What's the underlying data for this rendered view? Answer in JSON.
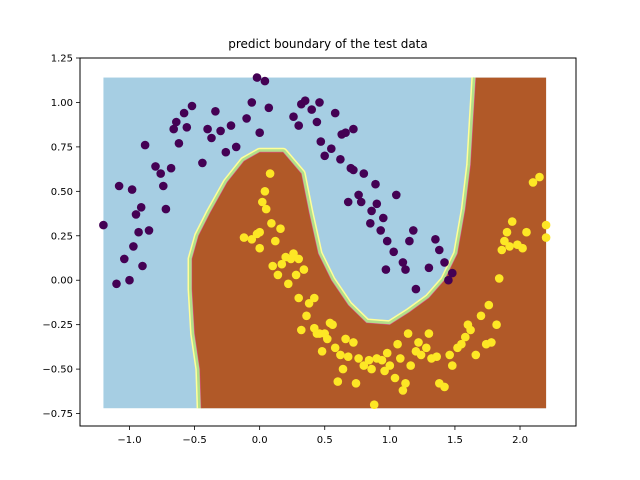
{
  "chart_data": {
    "type": "scatter",
    "title": "predict boundary of the test data",
    "xlabel": "",
    "ylabel": "",
    "xlim": [
      -1.38,
      2.43
    ],
    "ylim": [
      -0.82,
      1.25
    ],
    "xticks": [
      -1.0,
      -0.5,
      0.0,
      0.5,
      1.0,
      1.5,
      2.0
    ],
    "xtick_labels": [
      "−1.0",
      "−0.5",
      "0.0",
      "0.5",
      "1.0",
      "1.5",
      "2.0"
    ],
    "yticks": [
      -0.75,
      -0.5,
      -0.25,
      0.0,
      0.25,
      0.5,
      0.75,
      1.0,
      1.25
    ],
    "ytick_labels": [
      "−0.75",
      "−0.50",
      "−0.25",
      "0.00",
      "0.25",
      "0.50",
      "0.75",
      "1.00",
      "1.25"
    ],
    "grid": false,
    "legend": "none",
    "colors": {
      "region_class0": "#a6cee3",
      "region_class1": "#b15928",
      "boundary_inner": "#b2df8a",
      "boundary_outer": "#ffff99",
      "point_class0": "#440154",
      "point_class1": "#fde725"
    },
    "decision_region": {
      "x_range": [
        -1.2,
        2.2
      ],
      "y_range": [
        -0.72,
        1.14
      ],
      "boundary": [
        [
          -0.45,
          -0.72
        ],
        [
          -0.46,
          -0.5
        ],
        [
          -0.5,
          -0.3
        ],
        [
          -0.52,
          -0.05
        ],
        [
          -0.52,
          0.12
        ],
        [
          -0.47,
          0.25
        ],
        [
          -0.38,
          0.38
        ],
        [
          -0.25,
          0.55
        ],
        [
          -0.12,
          0.67
        ],
        [
          0.0,
          0.72
        ],
        [
          0.18,
          0.72
        ],
        [
          0.32,
          0.6
        ],
        [
          0.38,
          0.38
        ],
        [
          0.45,
          0.15
        ],
        [
          0.55,
          0.0
        ],
        [
          0.68,
          -0.14
        ],
        [
          0.82,
          -0.24
        ],
        [
          1.0,
          -0.25
        ],
        [
          1.15,
          -0.18
        ],
        [
          1.3,
          -0.1
        ],
        [
          1.42,
          0.0
        ],
        [
          1.52,
          0.15
        ],
        [
          1.58,
          0.4
        ],
        [
          1.62,
          0.65
        ],
        [
          1.64,
          0.9
        ],
        [
          1.66,
          1.14
        ]
      ]
    },
    "series": [
      {
        "class": 0,
        "points": [
          [
            -1.2,
            0.31
          ],
          [
            -1.1,
            -0.02
          ],
          [
            -1.08,
            0.53
          ],
          [
            -1.04,
            0.12
          ],
          [
            -1.0,
            -0.0
          ],
          [
            -0.98,
            0.51
          ],
          [
            -0.97,
            0.19
          ],
          [
            -0.95,
            0.37
          ],
          [
            -0.93,
            0.27
          ],
          [
            -0.91,
            0.41
          ],
          [
            -0.9,
            0.08
          ],
          [
            -0.88,
            0.76
          ],
          [
            -0.85,
            0.28
          ],
          [
            -0.8,
            0.64
          ],
          [
            -0.76,
            0.6
          ],
          [
            -0.74,
            0.53
          ],
          [
            -0.72,
            0.4
          ],
          [
            -0.68,
            0.63
          ],
          [
            -0.66,
            0.85
          ],
          [
            -0.64,
            0.89
          ],
          [
            -0.62,
            0.77
          ],
          [
            -0.58,
            0.94
          ],
          [
            -0.56,
            0.86
          ],
          [
            -0.52,
            0.98
          ],
          [
            -0.44,
            0.66
          ],
          [
            -0.4,
            0.85
          ],
          [
            -0.37,
            0.8
          ],
          [
            -0.34,
            0.95
          ],
          [
            -0.3,
            0.84
          ],
          [
            -0.26,
            0.72
          ],
          [
            -0.22,
            0.87
          ],
          [
            -0.18,
            0.75
          ],
          [
            -0.1,
            0.91
          ],
          [
            -0.06,
            1.0
          ],
          [
            -0.02,
            1.14
          ],
          [
            0.0,
            0.83
          ],
          [
            0.04,
            1.12
          ],
          [
            0.07,
            0.97
          ],
          [
            0.26,
            0.92
          ],
          [
            0.3,
            0.87
          ],
          [
            0.32,
            0.99
          ],
          [
            0.35,
            1.01
          ],
          [
            0.4,
            0.96
          ],
          [
            0.44,
            0.89
          ],
          [
            0.46,
            1.0
          ],
          [
            0.47,
            0.78
          ],
          [
            0.5,
            0.7
          ],
          [
            0.55,
            0.74
          ],
          [
            0.58,
            0.94
          ],
          [
            0.63,
            0.82
          ],
          [
            0.66,
            0.83
          ],
          [
            0.7,
            0.63
          ],
          [
            0.72,
            0.85
          ],
          [
            0.76,
            0.48
          ],
          [
            0.78,
            0.44
          ],
          [
            0.8,
            0.6
          ],
          [
            0.85,
            0.32
          ],
          [
            0.89,
            0.54
          ],
          [
            0.9,
            0.43
          ],
          [
            0.93,
            0.28
          ],
          [
            0.97,
            0.06
          ],
          [
            0.98,
            0.22
          ],
          [
            1.05,
            0.48
          ],
          [
            1.1,
            0.1
          ],
          [
            1.12,
            0.06
          ],
          [
            1.15,
            0.22
          ],
          [
            1.18,
            0.28
          ],
          [
            1.2,
            -0.05
          ],
          [
            1.3,
            0.07
          ],
          [
            1.35,
            0.23
          ],
          [
            1.38,
            0.17
          ],
          [
            1.42,
            0.1
          ],
          [
            1.45,
            0.0
          ],
          [
            1.48,
            0.04
          ],
          [
            0.72,
            0.62
          ],
          [
            0.68,
            0.44
          ],
          [
            0.62,
            0.68
          ],
          [
            0.86,
            0.39
          ],
          [
            1.03,
            0.16
          ],
          [
            0.95,
            0.35
          ]
        ]
      },
      {
        "class": 1,
        "points": [
          [
            -0.12,
            0.24
          ],
          [
            -0.02,
            0.26
          ],
          [
            0.0,
            0.18
          ],
          [
            0.02,
            0.44
          ],
          [
            0.05,
            0.4
          ],
          [
            0.08,
            0.6
          ],
          [
            0.1,
            0.08
          ],
          [
            0.12,
            0.22
          ],
          [
            0.14,
            0.03
          ],
          [
            0.17,
            0.09
          ],
          [
            0.2,
            0.13
          ],
          [
            0.22,
            -0.02
          ],
          [
            0.24,
            0.12
          ],
          [
            0.26,
            0.15
          ],
          [
            0.3,
            0.12
          ],
          [
            0.34,
            0.06
          ],
          [
            0.38,
            -0.13
          ],
          [
            0.42,
            -0.27
          ],
          [
            0.46,
            -0.3
          ],
          [
            0.48,
            -0.4
          ],
          [
            0.5,
            -0.3
          ],
          [
            0.52,
            -0.33
          ],
          [
            0.54,
            -0.24
          ],
          [
            0.56,
            -0.25
          ],
          [
            0.6,
            -0.57
          ],
          [
            0.64,
            -0.5
          ],
          [
            0.68,
            -0.43
          ],
          [
            0.72,
            -0.35
          ],
          [
            0.8,
            -0.48
          ],
          [
            0.84,
            -0.45
          ],
          [
            0.88,
            -0.7
          ],
          [
            0.9,
            -0.44
          ],
          [
            0.94,
            -0.45
          ],
          [
            0.98,
            -0.41
          ],
          [
            1.0,
            -0.48
          ],
          [
            1.04,
            -0.55
          ],
          [
            1.08,
            -0.44
          ],
          [
            1.12,
            -0.58
          ],
          [
            1.16,
            -0.48
          ],
          [
            1.2,
            -0.4
          ],
          [
            1.24,
            -0.42
          ],
          [
            1.28,
            -0.38
          ],
          [
            1.32,
            -0.44
          ],
          [
            1.38,
            -0.58
          ],
          [
            1.42,
            -0.6
          ],
          [
            1.48,
            -0.48
          ],
          [
            1.52,
            -0.38
          ],
          [
            1.58,
            -0.32
          ],
          [
            1.62,
            -0.28
          ],
          [
            1.66,
            -0.42
          ],
          [
            1.7,
            -0.2
          ],
          [
            1.74,
            -0.36
          ],
          [
            1.78,
            -0.35
          ],
          [
            1.82,
            -0.25
          ],
          [
            1.84,
            0.01
          ],
          [
            1.86,
            0.17
          ],
          [
            1.88,
            0.22
          ],
          [
            1.9,
            0.27
          ],
          [
            1.94,
            0.33
          ],
          [
            1.98,
            0.2
          ],
          [
            2.02,
            0.18
          ],
          [
            2.05,
            0.27
          ],
          [
            2.1,
            0.55
          ],
          [
            2.15,
            0.58
          ],
          [
            2.2,
            0.31
          ],
          [
            2.2,
            0.24
          ],
          [
            1.92,
            0.19
          ],
          [
            1.76,
            -0.14
          ],
          [
            1.6,
            -0.25
          ],
          [
            1.55,
            -0.36
          ],
          [
            1.46,
            -0.42
          ],
          [
            1.36,
            -0.43
          ],
          [
            1.3,
            -0.3
          ],
          [
            1.22,
            -0.35
          ],
          [
            1.14,
            -0.3
          ],
          [
            1.06,
            -0.36
          ],
          [
            0.96,
            -0.51
          ],
          [
            0.86,
            -0.5
          ],
          [
            0.76,
            -0.44
          ],
          [
            0.66,
            -0.33
          ],
          [
            0.58,
            -0.38
          ],
          [
            0.44,
            -0.3
          ],
          [
            0.36,
            -0.2
          ],
          [
            0.3,
            -0.1
          ],
          [
            0.28,
            0.03
          ],
          [
            0.16,
            0.29
          ],
          [
            0.09,
            0.32
          ],
          [
            0.04,
            0.5
          ],
          [
            0.0,
            0.27
          ],
          [
            -0.06,
            0.23
          ],
          [
            0.32,
            -0.28
          ],
          [
            0.42,
            -0.1
          ],
          [
            0.62,
            -0.42
          ],
          [
            0.74,
            -0.58
          ],
          [
            1.1,
            -0.62
          ]
        ]
      }
    ]
  }
}
